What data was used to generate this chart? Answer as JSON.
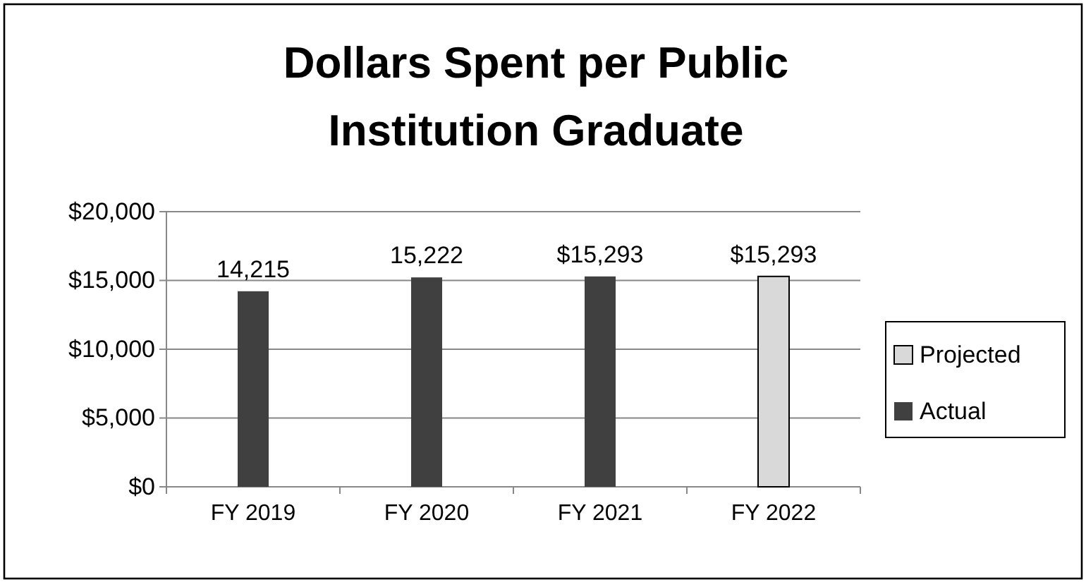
{
  "chart_data": {
    "type": "bar",
    "title": "Dollars Spent per Public Institution Graduate",
    "categories": [
      "FY 2019",
      "FY 2020",
      "FY 2021",
      "FY 2022"
    ],
    "series": [
      {
        "name": "Projected",
        "color": "#d9d9d9",
        "values": [
          null,
          null,
          null,
          15293
        ],
        "value_labels": [
          null,
          null,
          null,
          "$15,293"
        ]
      },
      {
        "name": "Actual",
        "color": "#404040",
        "values": [
          14215,
          15222,
          15293,
          null
        ],
        "value_labels": [
          "14,215",
          "15,222",
          "$15,293",
          null
        ]
      }
    ],
    "ylim": [
      0,
      20000
    ],
    "yticks": [
      {
        "value": 0,
        "label": "$0"
      },
      {
        "value": 5000,
        "label": "$5,000"
      },
      {
        "value": 10000,
        "label": "$10,000"
      },
      {
        "value": 15000,
        "label": "$15,000"
      },
      {
        "value": 20000,
        "label": "$20,000"
      }
    ],
    "grid": "y",
    "legend": "right"
  }
}
